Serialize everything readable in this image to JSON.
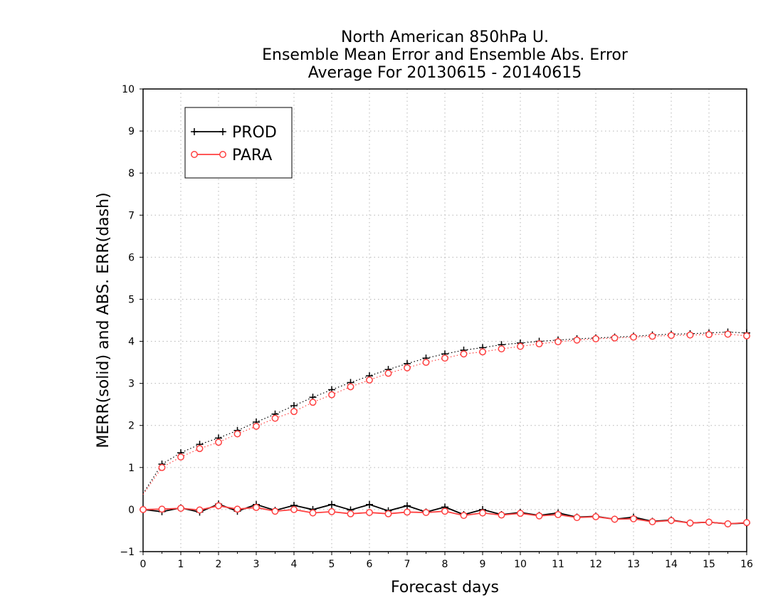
{
  "chart_data": {
    "type": "line",
    "title": [
      "North American 850hPa U.",
      "Ensemble Mean Error and Ensemble Abs. Error",
      "Average For 20130615 - 20140615"
    ],
    "xlabel": "Forecast days",
    "ylabel": "MERR(solid) and ABS. ERR(dash)",
    "xlim": [
      0,
      16
    ],
    "ylim": [
      -1,
      10
    ],
    "xticks": [
      0,
      1,
      2,
      3,
      4,
      5,
      6,
      7,
      8,
      9,
      10,
      11,
      12,
      13,
      14,
      15,
      16
    ],
    "yticks": [
      -1,
      0,
      1,
      2,
      3,
      4,
      5,
      6,
      7,
      8,
      9,
      10
    ],
    "grid": true,
    "legend_position": "top-left",
    "x": [
      0,
      0.5,
      1,
      1.5,
      2,
      2.5,
      3,
      3.5,
      4,
      4.5,
      5,
      5.5,
      6,
      6.5,
      7,
      7.5,
      8,
      8.5,
      9,
      9.5,
      10,
      10.5,
      11,
      11.5,
      12,
      12.5,
      13,
      13.5,
      14,
      14.5,
      15,
      15.5,
      16
    ],
    "series": [
      {
        "name": "PROD",
        "color": "#000000",
        "marker": "plus",
        "merr": [
          0.0,
          -0.05,
          0.04,
          -0.06,
          0.13,
          -0.04,
          0.12,
          -0.02,
          0.1,
          0.0,
          0.12,
          -0.01,
          0.12,
          -0.03,
          0.09,
          -0.06,
          0.06,
          -0.12,
          0.0,
          -0.12,
          -0.07,
          -0.14,
          -0.08,
          -0.18,
          -0.16,
          -0.23,
          -0.18,
          -0.28,
          -0.25,
          -0.32,
          -0.3,
          -0.34,
          -0.32
        ],
        "abs_err": [
          0.38,
          1.08,
          1.35,
          1.55,
          1.7,
          1.88,
          2.08,
          2.27,
          2.47,
          2.67,
          2.85,
          3.02,
          3.18,
          3.33,
          3.47,
          3.6,
          3.7,
          3.79,
          3.85,
          3.92,
          3.96,
          4.0,
          4.03,
          4.06,
          4.08,
          4.1,
          4.12,
          4.15,
          4.17,
          4.18,
          4.2,
          4.22,
          4.2
        ]
      },
      {
        "name": "PARA",
        "color": "#ff4040",
        "marker": "circle",
        "merr": [
          0.0,
          0.01,
          0.03,
          -0.01,
          0.09,
          0.01,
          0.05,
          -0.04,
          0.0,
          -0.08,
          -0.05,
          -0.1,
          -0.07,
          -0.1,
          -0.06,
          -0.07,
          -0.04,
          -0.14,
          -0.08,
          -0.13,
          -0.09,
          -0.15,
          -0.12,
          -0.19,
          -0.17,
          -0.23,
          -0.22,
          -0.29,
          -0.26,
          -0.32,
          -0.3,
          -0.34,
          -0.31
        ],
        "abs_err": [
          0.36,
          1.0,
          1.25,
          1.45,
          1.6,
          1.8,
          1.98,
          2.17,
          2.33,
          2.55,
          2.73,
          2.92,
          3.08,
          3.24,
          3.37,
          3.5,
          3.6,
          3.7,
          3.75,
          3.82,
          3.88,
          3.94,
          3.99,
          4.03,
          4.06,
          4.08,
          4.1,
          4.12,
          4.14,
          4.15,
          4.16,
          4.17,
          4.13
        ]
      }
    ]
  }
}
